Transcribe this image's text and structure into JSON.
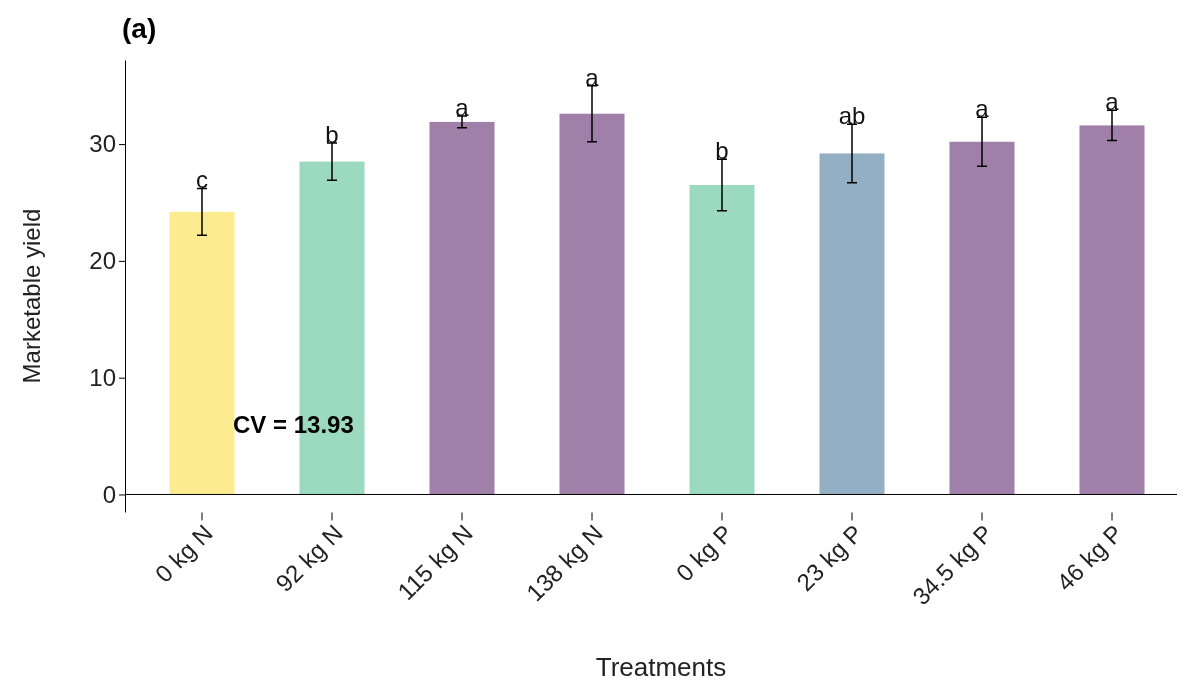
{
  "chart_data": {
    "type": "bar",
    "title": "(a)",
    "xlabel": "Treatments",
    "ylabel": "Marketable yield",
    "categories": [
      "0 kg N",
      "92 kg N",
      "115 kg N",
      "138 kg N",
      "0 kg P",
      "23 kg P",
      "34.5 kg P",
      "46 kg P"
    ],
    "values": [
      24.2,
      28.5,
      31.9,
      32.6,
      26.5,
      29.2,
      30.2,
      31.6
    ],
    "errors": [
      2.0,
      1.6,
      0.5,
      2.4,
      2.2,
      2.5,
      2.1,
      1.3
    ],
    "colors": [
      "#fdec8f",
      "#9bdabe",
      "#a07fa8",
      "#a07fa8",
      "#9bdabe",
      "#93afc3",
      "#a07fa8",
      "#a07fa8"
    ],
    "ylim": [
      -1.5,
      37.2
    ],
    "yticks": [
      0,
      10,
      20,
      30
    ],
    "grid": false,
    "annotations": [
      {
        "text": "c",
        "x": "0 kg N",
        "y": 26.2
      },
      {
        "text": "b",
        "x": "92 kg N",
        "y": 30.1
      },
      {
        "text": "a",
        "x": "115 kg N",
        "y": 32.4
      },
      {
        "text": "a",
        "x": "138 kg N",
        "y": 35.0
      },
      {
        "text": "b",
        "x": "0 kg P",
        "y": 28.7
      },
      {
        "text": "ab",
        "x": "23 kg P",
        "y": 31.7
      },
      {
        "text": "a",
        "x": "34.5 kg P",
        "y": 32.3
      },
      {
        "text": "a",
        "x": "46 kg P",
        "y": 32.9
      },
      "CV = 13.93"
    ]
  }
}
